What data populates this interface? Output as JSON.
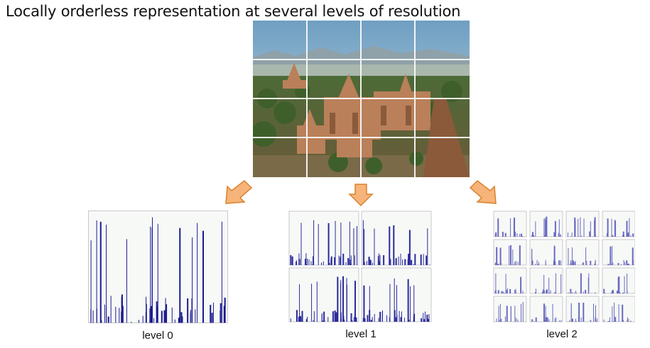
{
  "title": "Locally orderless representation at several levels of resolution",
  "photo": {
    "grid": "4x4",
    "alt_subject": "temples landscape"
  },
  "levels": [
    {
      "label": "level 0",
      "grid": 1
    },
    {
      "label": "level 1",
      "grid": 2
    },
    {
      "label": "level 2",
      "grid": 4
    }
  ],
  "colors": {
    "bar": "#1b1b8f",
    "bar_light": "#6a6ac0",
    "arrow_fill": "#f6b47a",
    "arrow_stroke": "#d9822b"
  }
}
